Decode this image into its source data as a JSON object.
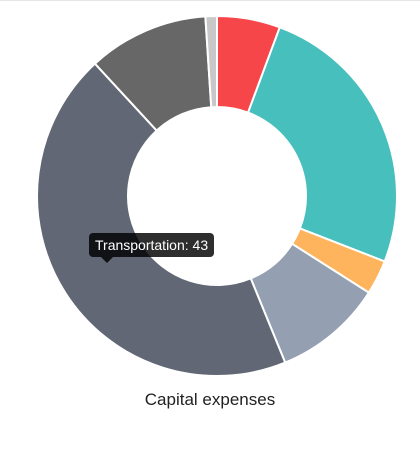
{
  "chart_data": {
    "type": "doughnut",
    "title": "Capital expenses",
    "categories": [
      "",
      "",
      "",
      "",
      "",
      "",
      ""
    ],
    "values": [
      5.5,
      24.5,
      3,
      9.5,
      43,
      10.5,
      1
    ],
    "colors": [
      "#f7464a",
      "#46bfbd",
      "#fdb45c",
      "#949fb1",
      "#616774",
      "#676767",
      "#c8c8c8"
    ],
    "tooltip": {
      "label": "Transportation",
      "value": 43,
      "text": "Transportation: 43"
    }
  }
}
